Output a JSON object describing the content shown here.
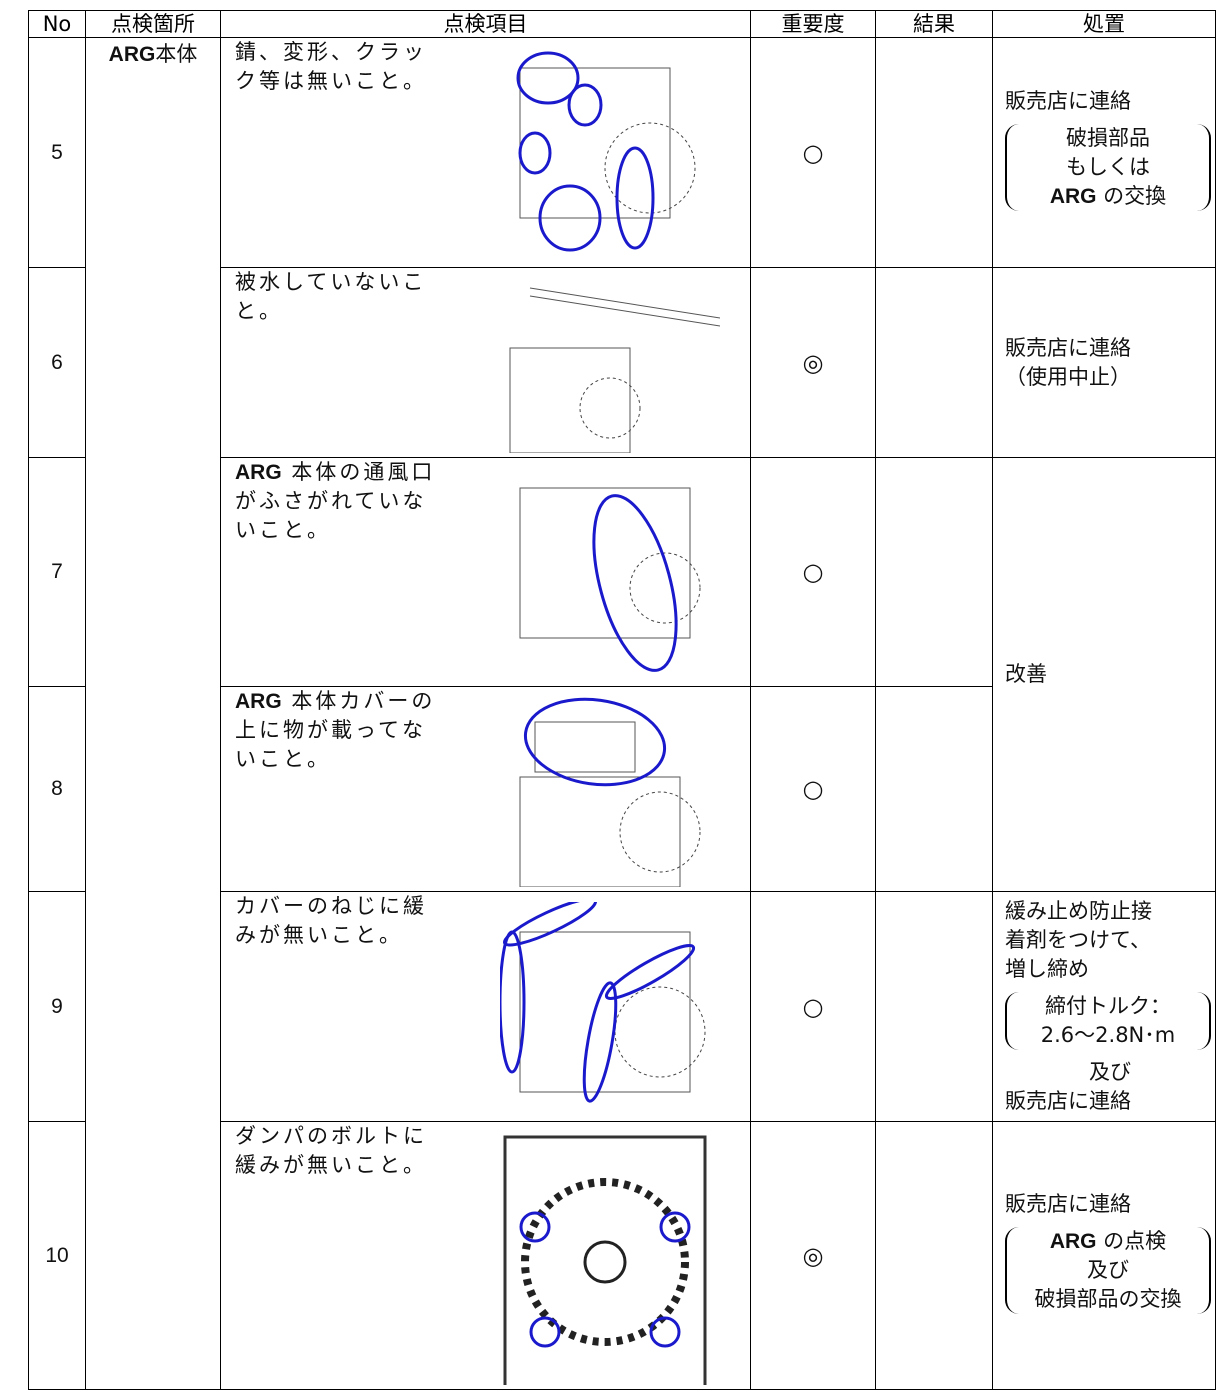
{
  "table": {
    "header": [
      "No",
      "点検箇所",
      "点検項目",
      "重要度",
      "結果",
      "処置"
    ],
    "location": {
      "bold": "ARG",
      "text": "本体"
    },
    "rows": [
      {
        "no": "5",
        "item": [
          "錆、変形、クラッ",
          "ク等は無いこと。"
        ],
        "importance": "○",
        "action": {
          "lines": [
            "販売店に連絡"
          ],
          "note": [
            "破損部品",
            "もしくは",
            {
              "bold": "ARG",
              "text": " の交換"
            }
          ],
          "after": []
        }
      },
      {
        "no": "6",
        "item": [
          "被水していないこ",
          "と。"
        ],
        "importance": "◎",
        "action": {
          "lines": [
            "販売店に連絡",
            "（使用中止）"
          ],
          "note": [],
          "after": []
        }
      },
      {
        "no": "7",
        "item": [
          {
            "bold": "ARG",
            "text": " 本体の通風口"
          },
          "がふさがれていな",
          "いこと。"
        ],
        "importance": "○",
        "action": {
          "lines": [
            "改善"
          ],
          "note": [],
          "after": []
        }
      },
      {
        "no": "8",
        "item": [
          {
            "bold": "ARG",
            "text": " 本体カバーの"
          },
          "上に物が載ってな",
          "いこと。"
        ],
        "importance": "○"
      },
      {
        "no": "9",
        "item": [
          "カバーのねじに緩",
          "みが無いこと。"
        ],
        "importance": "○",
        "action": {
          "lines": [
            "緩み止め防止接",
            "着剤をつけて、",
            "増し締め"
          ],
          "note": [
            "締付トルク：",
            "2.6～2.8N･m"
          ],
          "after": [
            "及び",
            "販売店に連絡"
          ]
        }
      },
      {
        "no": "10",
        "item": [
          "ダンパのボルトに",
          "緩みが無いこと。"
        ],
        "importance": "◎",
        "action": {
          "lines": [
            "販売店に連絡"
          ],
          "note": [
            {
              "bold": "ARG",
              "text": " の点検"
            },
            "及び",
            "破損部品の交換"
          ],
          "after": []
        }
      }
    ]
  }
}
